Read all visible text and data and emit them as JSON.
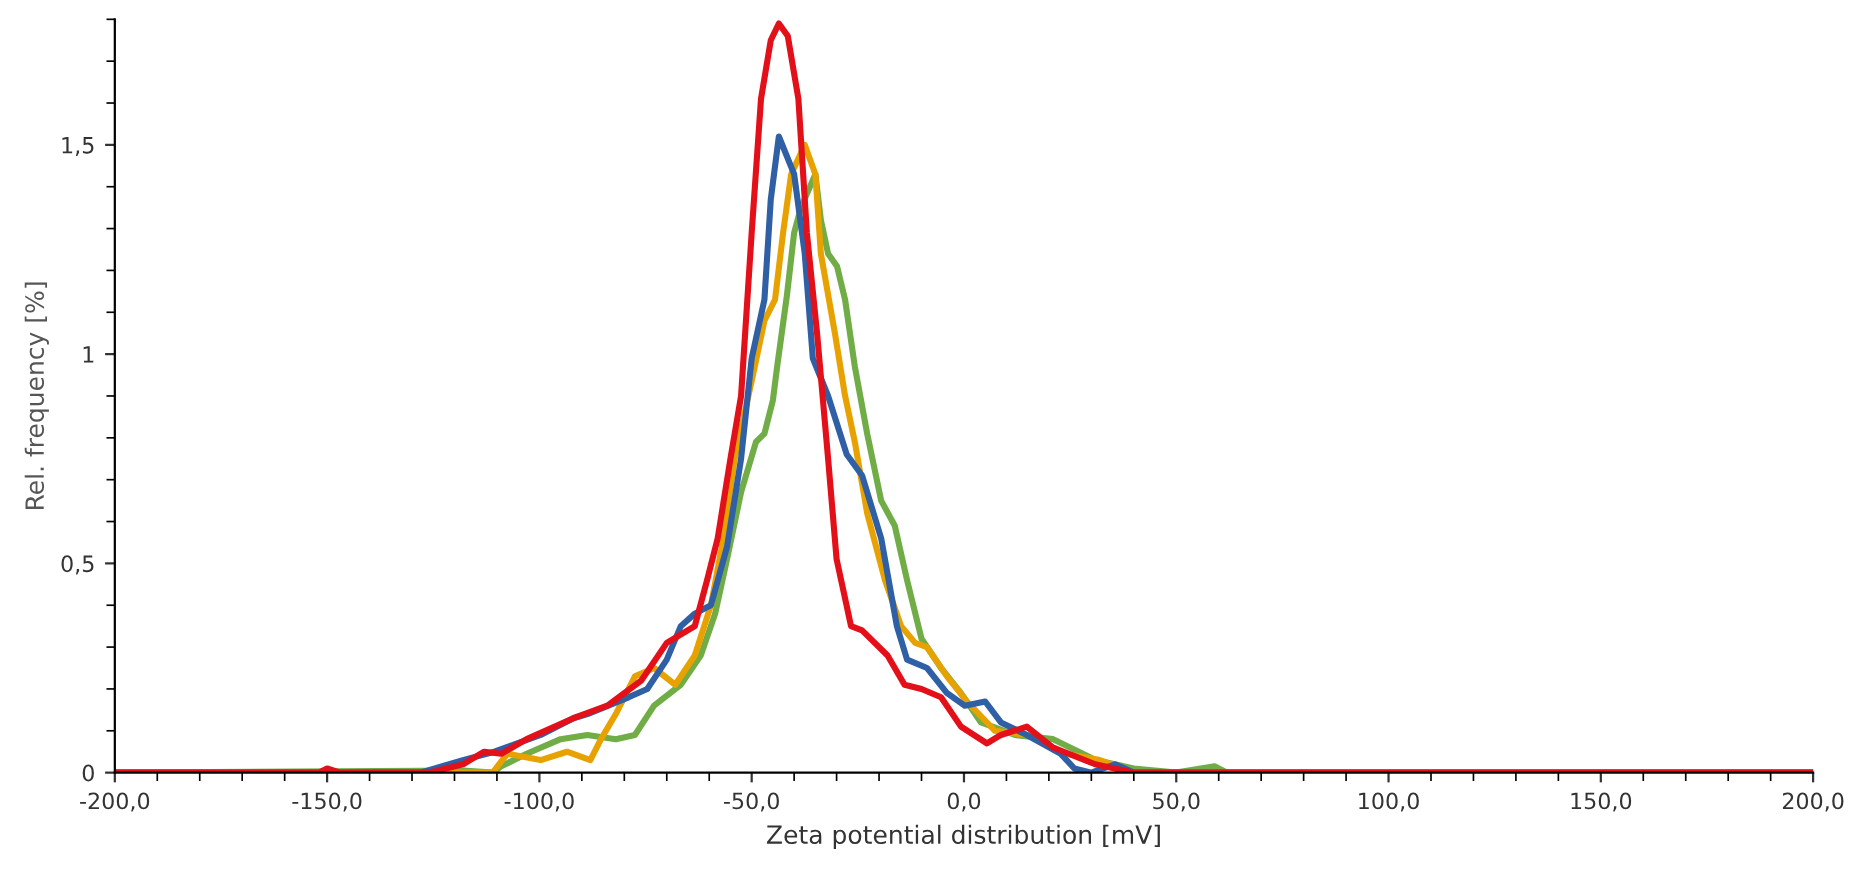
{
  "chart_data": {
    "type": "line",
    "xlabel": "Zeta potential distribution [mV]",
    "ylabel": "Rel. frequency [%]",
    "xlim": [
      -200,
      200
    ],
    "ylim": [
      0,
      1.8
    ],
    "xticks": [
      {
        "value": -200,
        "label": "-200,0"
      },
      {
        "value": -150,
        "label": "-150,0"
      },
      {
        "value": -100,
        "label": "-100,0"
      },
      {
        "value": -50,
        "label": "-50,0"
      },
      {
        "value": 0,
        "label": "0,0"
      },
      {
        "value": 50,
        "label": "50,0"
      },
      {
        "value": 100,
        "label": "100,0"
      },
      {
        "value": 150,
        "label": "150,0"
      },
      {
        "value": 200,
        "label": "200,0"
      }
    ],
    "yticks": [
      0,
      {
        "value": 0.5,
        "label": "0,5"
      },
      1,
      {
        "value": 1.5,
        "label": "1,5"
      }
    ],
    "grid": false,
    "legend": false,
    "marker": "none",
    "line_style": "solid",
    "series": [
      {
        "color": "#70ad47",
        "x": [
          -200,
          -118,
          -111,
          -109,
          -103,
          -95,
          -88.7,
          -82,
          -77.5,
          -73,
          -66.7,
          -62,
          -58.6,
          -55.8,
          -52.5,
          -49,
          -47,
          -45,
          -44,
          -41.7,
          -40,
          -38.4,
          -35,
          -33.7,
          -32,
          -29.9,
          -28,
          -25.7,
          -22.8,
          -19.5,
          -16.3,
          -13.4,
          -10,
          -5.4,
          -0.7,
          4,
          12,
          21,
          31,
          40,
          50,
          59,
          62,
          200
        ],
        "values": [
          0,
          0.005,
          0,
          0.015,
          0.045,
          0.08,
          0.09,
          0.08,
          0.09,
          0.16,
          0.21,
          0.28,
          0.38,
          0.51,
          0.67,
          0.79,
          0.81,
          0.89,
          0.97,
          1.14,
          1.29,
          1.35,
          1.43,
          1.32,
          1.24,
          1.21,
          1.13,
          0.97,
          0.81,
          0.65,
          0.59,
          0.46,
          0.32,
          0.25,
          0.19,
          0.12,
          0.09,
          0.08,
          0.03,
          0.01,
          0,
          0.015,
          0,
          0
        ]
      },
      {
        "color": "#e8a200",
        "x": [
          -200,
          -125,
          -111,
          -107.6,
          -99.7,
          -93.5,
          -88,
          -85.5,
          -82,
          -77.5,
          -73,
          -68,
          -63.4,
          -59.6,
          -57,
          -54,
          -49.7,
          -47,
          -44.5,
          -42.6,
          -40.7,
          -37.5,
          -35,
          -33.7,
          -30.4,
          -28,
          -25.7,
          -22.8,
          -18.6,
          -14.8,
          -11.5,
          -8.7,
          -4,
          0.7,
          7.3,
          14.8,
          24,
          32,
          40,
          200
        ],
        "values": [
          0,
          0,
          0,
          0.045,
          0.03,
          0.05,
          0.03,
          0.08,
          0.14,
          0.23,
          0.25,
          0.21,
          0.28,
          0.4,
          0.54,
          0.75,
          0.95,
          1.08,
          1.13,
          1.29,
          1.43,
          1.5,
          1.43,
          1.24,
          1.05,
          0.9,
          0.79,
          0.62,
          0.46,
          0.35,
          0.31,
          0.3,
          0.23,
          0.17,
          0.1,
          0.09,
          0.045,
          0.03,
          0,
          0
        ]
      },
      {
        "color": "#2f5fa5",
        "x": [
          -200,
          -128,
          -118,
          -110.6,
          -99.7,
          -92,
          -88.7,
          -79,
          -74.6,
          -70,
          -66.7,
          -63.4,
          -59.6,
          -55.8,
          -52.5,
          -50,
          -47,
          -45.5,
          -43.6,
          -40,
          -37.5,
          -35.6,
          -32,
          -27.6,
          -24,
          -19.5,
          -15.8,
          -13.4,
          -8.7,
          -4,
          0.2,
          5,
          8.7,
          14.8,
          22.8,
          26,
          30,
          35.6,
          40,
          200
        ],
        "values": [
          0,
          0,
          0.03,
          0.05,
          0.09,
          0.13,
          0.14,
          0.18,
          0.2,
          0.27,
          0.35,
          0.38,
          0.4,
          0.54,
          0.75,
          0.99,
          1.13,
          1.37,
          1.52,
          1.43,
          1.24,
          0.99,
          0.9,
          0.76,
          0.71,
          0.56,
          0.35,
          0.27,
          0.25,
          0.19,
          0.16,
          0.17,
          0.12,
          0.09,
          0.045,
          0.01,
          0,
          0.02,
          0,
          0
        ]
      },
      {
        "color": "#e3101a",
        "x": [
          -200,
          -152,
          -150,
          -147,
          -126,
          -118,
          -113,
          -109,
          -103,
          -92,
          -84,
          -76,
          -70,
          -63.4,
          -60.5,
          -58,
          -55,
          -52.5,
          -50,
          -47.8,
          -45.5,
          -43.6,
          -41.5,
          -39,
          -37,
          -34.6,
          -32,
          -30,
          -26.6,
          -24,
          -18,
          -14,
          -10,
          -5.4,
          -0.7,
          5.4,
          8.7,
          14.8,
          21,
          30.9,
          40,
          200
        ],
        "values": [
          0,
          0,
          0.01,
          0,
          0,
          0.02,
          0.05,
          0.045,
          0.08,
          0.13,
          0.16,
          0.22,
          0.31,
          0.35,
          0.46,
          0.56,
          0.75,
          0.9,
          1.29,
          1.61,
          1.75,
          1.79,
          1.76,
          1.61,
          1.29,
          1.05,
          0.75,
          0.51,
          0.35,
          0.34,
          0.28,
          0.21,
          0.2,
          0.18,
          0.11,
          0.07,
          0.09,
          0.11,
          0.06,
          0.02,
          0,
          0
        ]
      }
    ]
  }
}
